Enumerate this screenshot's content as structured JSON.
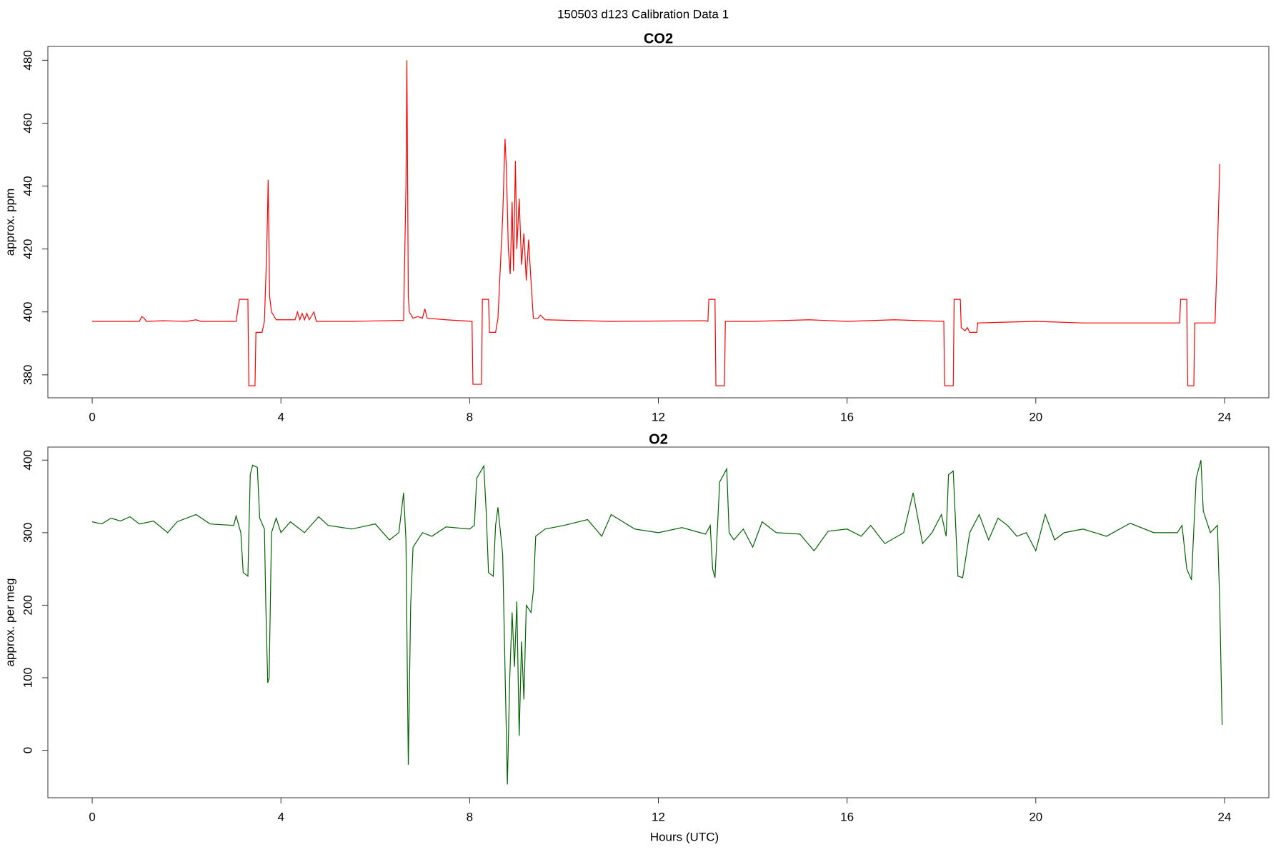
{
  "title": "150503   d123   Calibration Data 1",
  "chart_data": [
    {
      "type": "line",
      "title": "CO2",
      "ylabel": "approx. ppm",
      "color": "#ff0000",
      "xlim": [
        -0.94,
        24.94
      ],
      "ylim": [
        372.7,
        484.4
      ],
      "xticks": [
        0,
        4,
        8,
        12,
        16,
        20,
        24
      ],
      "yticks": [
        380,
        400,
        420,
        440,
        460,
        480
      ],
      "x": [
        0,
        1.0,
        1.05,
        1.1,
        1.15,
        1.5,
        2,
        2.2,
        2.3,
        3.05,
        3.12,
        3.3,
        3.32,
        3.45,
        3.47,
        3.6,
        3.65,
        3.7,
        3.73,
        3.76,
        3.8,
        3.9,
        4.3,
        4.35,
        4.4,
        4.45,
        4.5,
        4.55,
        4.6,
        4.7,
        4.75,
        5.5,
        6.6,
        6.65,
        6.67,
        6.7,
        6.72,
        6.8,
        6.9,
        7.0,
        7.05,
        7.1,
        7.5,
        8.05,
        8.07,
        8.25,
        8.27,
        8.4,
        8.42,
        8.55,
        8.6,
        8.7,
        8.75,
        8.78,
        8.82,
        8.86,
        8.9,
        8.93,
        8.97,
        9.0,
        9.05,
        9.1,
        9.15,
        9.2,
        9.25,
        9.3,
        9.35,
        9.45,
        9.5,
        9.6,
        11,
        13.0,
        13.05,
        13.07,
        13.2,
        13.22,
        13.4,
        13.42,
        14,
        15.2,
        16,
        17,
        18.05,
        18.07,
        18.25,
        18.27,
        18.4,
        18.42,
        18.5,
        18.55,
        18.6,
        18.75,
        18.77,
        20,
        21,
        23.05,
        23.07,
        23.2,
        23.22,
        23.35,
        23.37,
        23.8,
        23.85,
        23.9
      ],
      "values": [
        397,
        397,
        398.5,
        398,
        397,
        397.2,
        397,
        397.5,
        397,
        397,
        404,
        404,
        376.5,
        376.5,
        393.5,
        393.5,
        397,
        420,
        442,
        405,
        400,
        397.5,
        397.5,
        400,
        397.5,
        399.5,
        397.5,
        399.5,
        397.5,
        400,
        397,
        397,
        397.3,
        440,
        480,
        405,
        400,
        398,
        398.5,
        398,
        401,
        398,
        397.5,
        397,
        377,
        377,
        404,
        404,
        393.5,
        393.5,
        398,
        430,
        455,
        445,
        420,
        412,
        435,
        413,
        448,
        420,
        436,
        415,
        425,
        410,
        423,
        410,
        398,
        398,
        399,
        397.5,
        397,
        397.2,
        397,
        404,
        404,
        376.5,
        376.5,
        397,
        397,
        397.5,
        397,
        397.5,
        397,
        376.5,
        376.5,
        404,
        404,
        395,
        394,
        395,
        393.5,
        393.5,
        396.5,
        397,
        396.5,
        396.5,
        404,
        404,
        376.5,
        376.5,
        396.5,
        396.5,
        420,
        447
      ]
    },
    {
      "type": "line",
      "title": "O2",
      "ylabel": "approx. per meg",
      "xlabel": "Hours (UTC)",
      "color": "#006400",
      "xlim": [
        -0.94,
        24.94
      ],
      "ylim": [
        -65.4,
        418
      ],
      "xticks": [
        0,
        4,
        8,
        12,
        16,
        20,
        24
      ],
      "yticks": [
        0,
        100,
        200,
        300,
        400
      ],
      "x": [
        0,
        0.2,
        0.4,
        0.6,
        0.8,
        1.0,
        1.3,
        1.6,
        1.8,
        2.2,
        2.5,
        3.0,
        3.05,
        3.15,
        3.2,
        3.3,
        3.35,
        3.4,
        3.5,
        3.55,
        3.65,
        3.68,
        3.72,
        3.75,
        3.8,
        3.9,
        4.0,
        4.2,
        4.5,
        4.8,
        5.0,
        5.5,
        6.0,
        6.3,
        6.5,
        6.6,
        6.65,
        6.7,
        6.75,
        6.8,
        7.0,
        7.2,
        7.5,
        8.0,
        8.1,
        8.15,
        8.3,
        8.35,
        8.4,
        8.5,
        8.55,
        8.6,
        8.7,
        8.8,
        8.85,
        8.9,
        8.95,
        9.0,
        9.05,
        9.1,
        9.15,
        9.2,
        9.3,
        9.35,
        9.4,
        9.6,
        10,
        10.5,
        10.8,
        11,
        11.5,
        12,
        12.5,
        13.0,
        13.1,
        13.15,
        13.2,
        13.3,
        13.45,
        13.5,
        13.6,
        13.8,
        14,
        14.2,
        14.5,
        15,
        15.3,
        15.6,
        16,
        16.3,
        16.5,
        16.8,
        17.2,
        17.4,
        17.6,
        17.8,
        18.0,
        18.1,
        18.15,
        18.25,
        18.35,
        18.45,
        18.6,
        18.8,
        19,
        19.2,
        19.4,
        19.6,
        19.8,
        20,
        20.2,
        20.4,
        20.6,
        21,
        21.5,
        22,
        22.5,
        23,
        23.1,
        23.2,
        23.3,
        23.4,
        23.5,
        23.55,
        23.7,
        23.85,
        23.9,
        23.95
      ],
      "values": [
        315,
        312,
        320,
        316,
        322,
        312,
        316,
        300,
        315,
        325,
        312,
        310,
        323,
        300,
        245,
        240,
        380,
        393,
        390,
        320,
        305,
        200,
        93,
        100,
        300,
        320,
        300,
        315,
        300,
        322,
        310,
        305,
        312,
        290,
        300,
        355,
        290,
        -20,
        200,
        280,
        300,
        295,
        308,
        305,
        310,
        375,
        392,
        330,
        245,
        240,
        310,
        335,
        270,
        -47,
        100,
        190,
        115,
        205,
        20,
        150,
        70,
        200,
        190,
        220,
        295,
        305,
        310,
        318,
        295,
        325,
        305,
        300,
        307,
        298,
        310,
        250,
        238,
        370,
        388,
        300,
        290,
        305,
        280,
        315,
        300,
        298,
        275,
        302,
        305,
        295,
        310,
        285,
        300,
        355,
        285,
        300,
        325,
        295,
        380,
        385,
        240,
        238,
        300,
        325,
        290,
        320,
        310,
        295,
        300,
        275,
        325,
        290,
        300,
        305,
        295,
        313,
        300,
        300,
        310,
        250,
        235,
        375,
        400,
        330,
        300,
        310,
        200,
        35
      ]
    }
  ]
}
